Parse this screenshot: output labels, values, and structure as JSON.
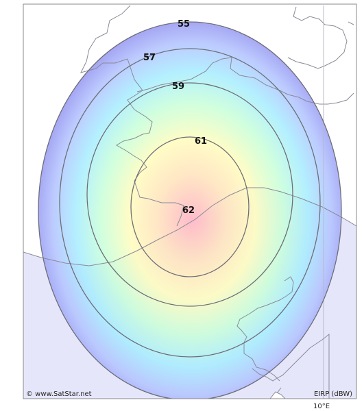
{
  "map": {
    "contours": [
      {
        "label": "55"
      },
      {
        "label": "57"
      },
      {
        "label": "59"
      },
      {
        "label": "61"
      },
      {
        "label": "62"
      }
    ],
    "copyright": "© www.SatStar.net",
    "unit_label": "EIRP (dBW)",
    "longitude_label": "10°E",
    "colors": {
      "sea": "#e6e6fb",
      "land": "#ffffff",
      "coast": "#8a8a98",
      "contour_line": "#6e6e78",
      "beam_outer": "#9a9af5",
      "beam_mid": "#a8ecff",
      "beam_inner": "#ffffc0",
      "beam_core": "#ffc0c8"
    }
  }
}
